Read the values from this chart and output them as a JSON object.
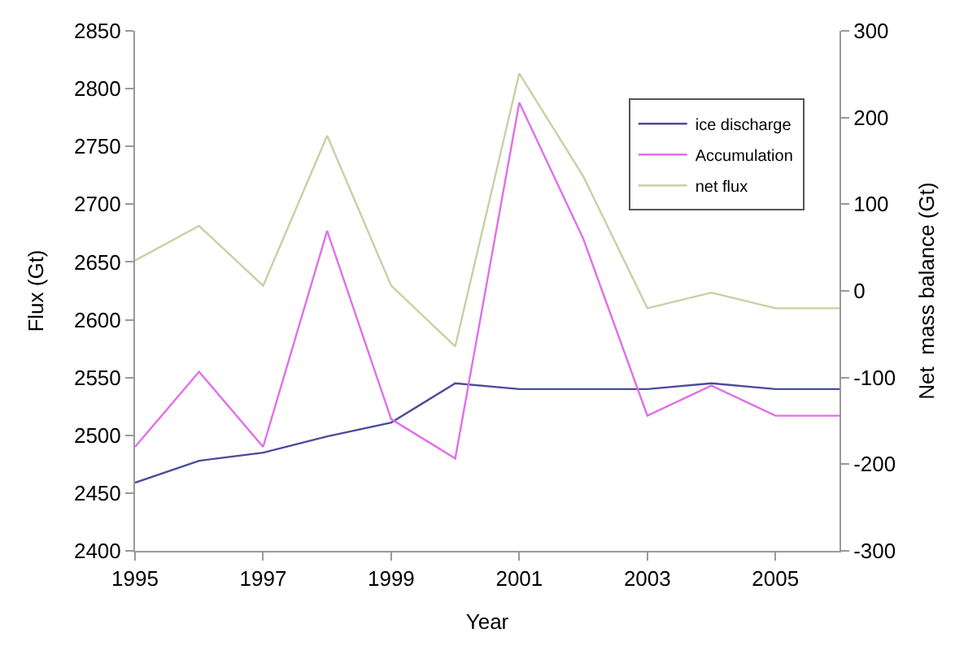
{
  "chart_data": {
    "type": "line",
    "xlabel": "Year",
    "ylabel": "Flux (Gt)",
    "y2label": "Net  mass balance (Gt)",
    "x": [
      1995,
      1996,
      1997,
      1998,
      1999,
      2000,
      2001,
      2002,
      2003,
      2004,
      2005,
      2006
    ],
    "series": [
      {
        "name": "ice discharge",
        "color": "#4b4b9b",
        "values": [
          2459,
          2478,
          2485,
          2499,
          2511,
          2545,
          2540,
          2540,
          2540,
          2545,
          2540,
          2540
        ]
      },
      {
        "name": "Accumulation",
        "color": "#e070e8",
        "values": [
          2490,
          2555,
          2490,
          2677,
          2514,
          2480,
          2788,
          2670,
          2517,
          2543,
          2517,
          2517
        ]
      },
      {
        "name": "net flux",
        "color": "#c8d0a4",
        "axis": "y2",
        "values": [
          35,
          75,
          6,
          179,
          6,
          -64,
          251,
          132,
          -20,
          -2,
          -20,
          -20
        ]
      }
    ],
    "xlim": [
      1995,
      2006
    ],
    "xticks": [
      1995,
      1997,
      1999,
      2001,
      2003,
      2005
    ],
    "ylim": [
      2400,
      2850
    ],
    "yticks": [
      2400,
      2450,
      2500,
      2550,
      2600,
      2650,
      2700,
      2750,
      2800,
      2850
    ],
    "y2lim": [
      -300,
      300
    ],
    "y2ticks": [
      -300,
      -200,
      -100,
      0,
      100,
      200,
      300
    ],
    "legend": "top right",
    "marker": "none",
    "line_style": "solid"
  }
}
